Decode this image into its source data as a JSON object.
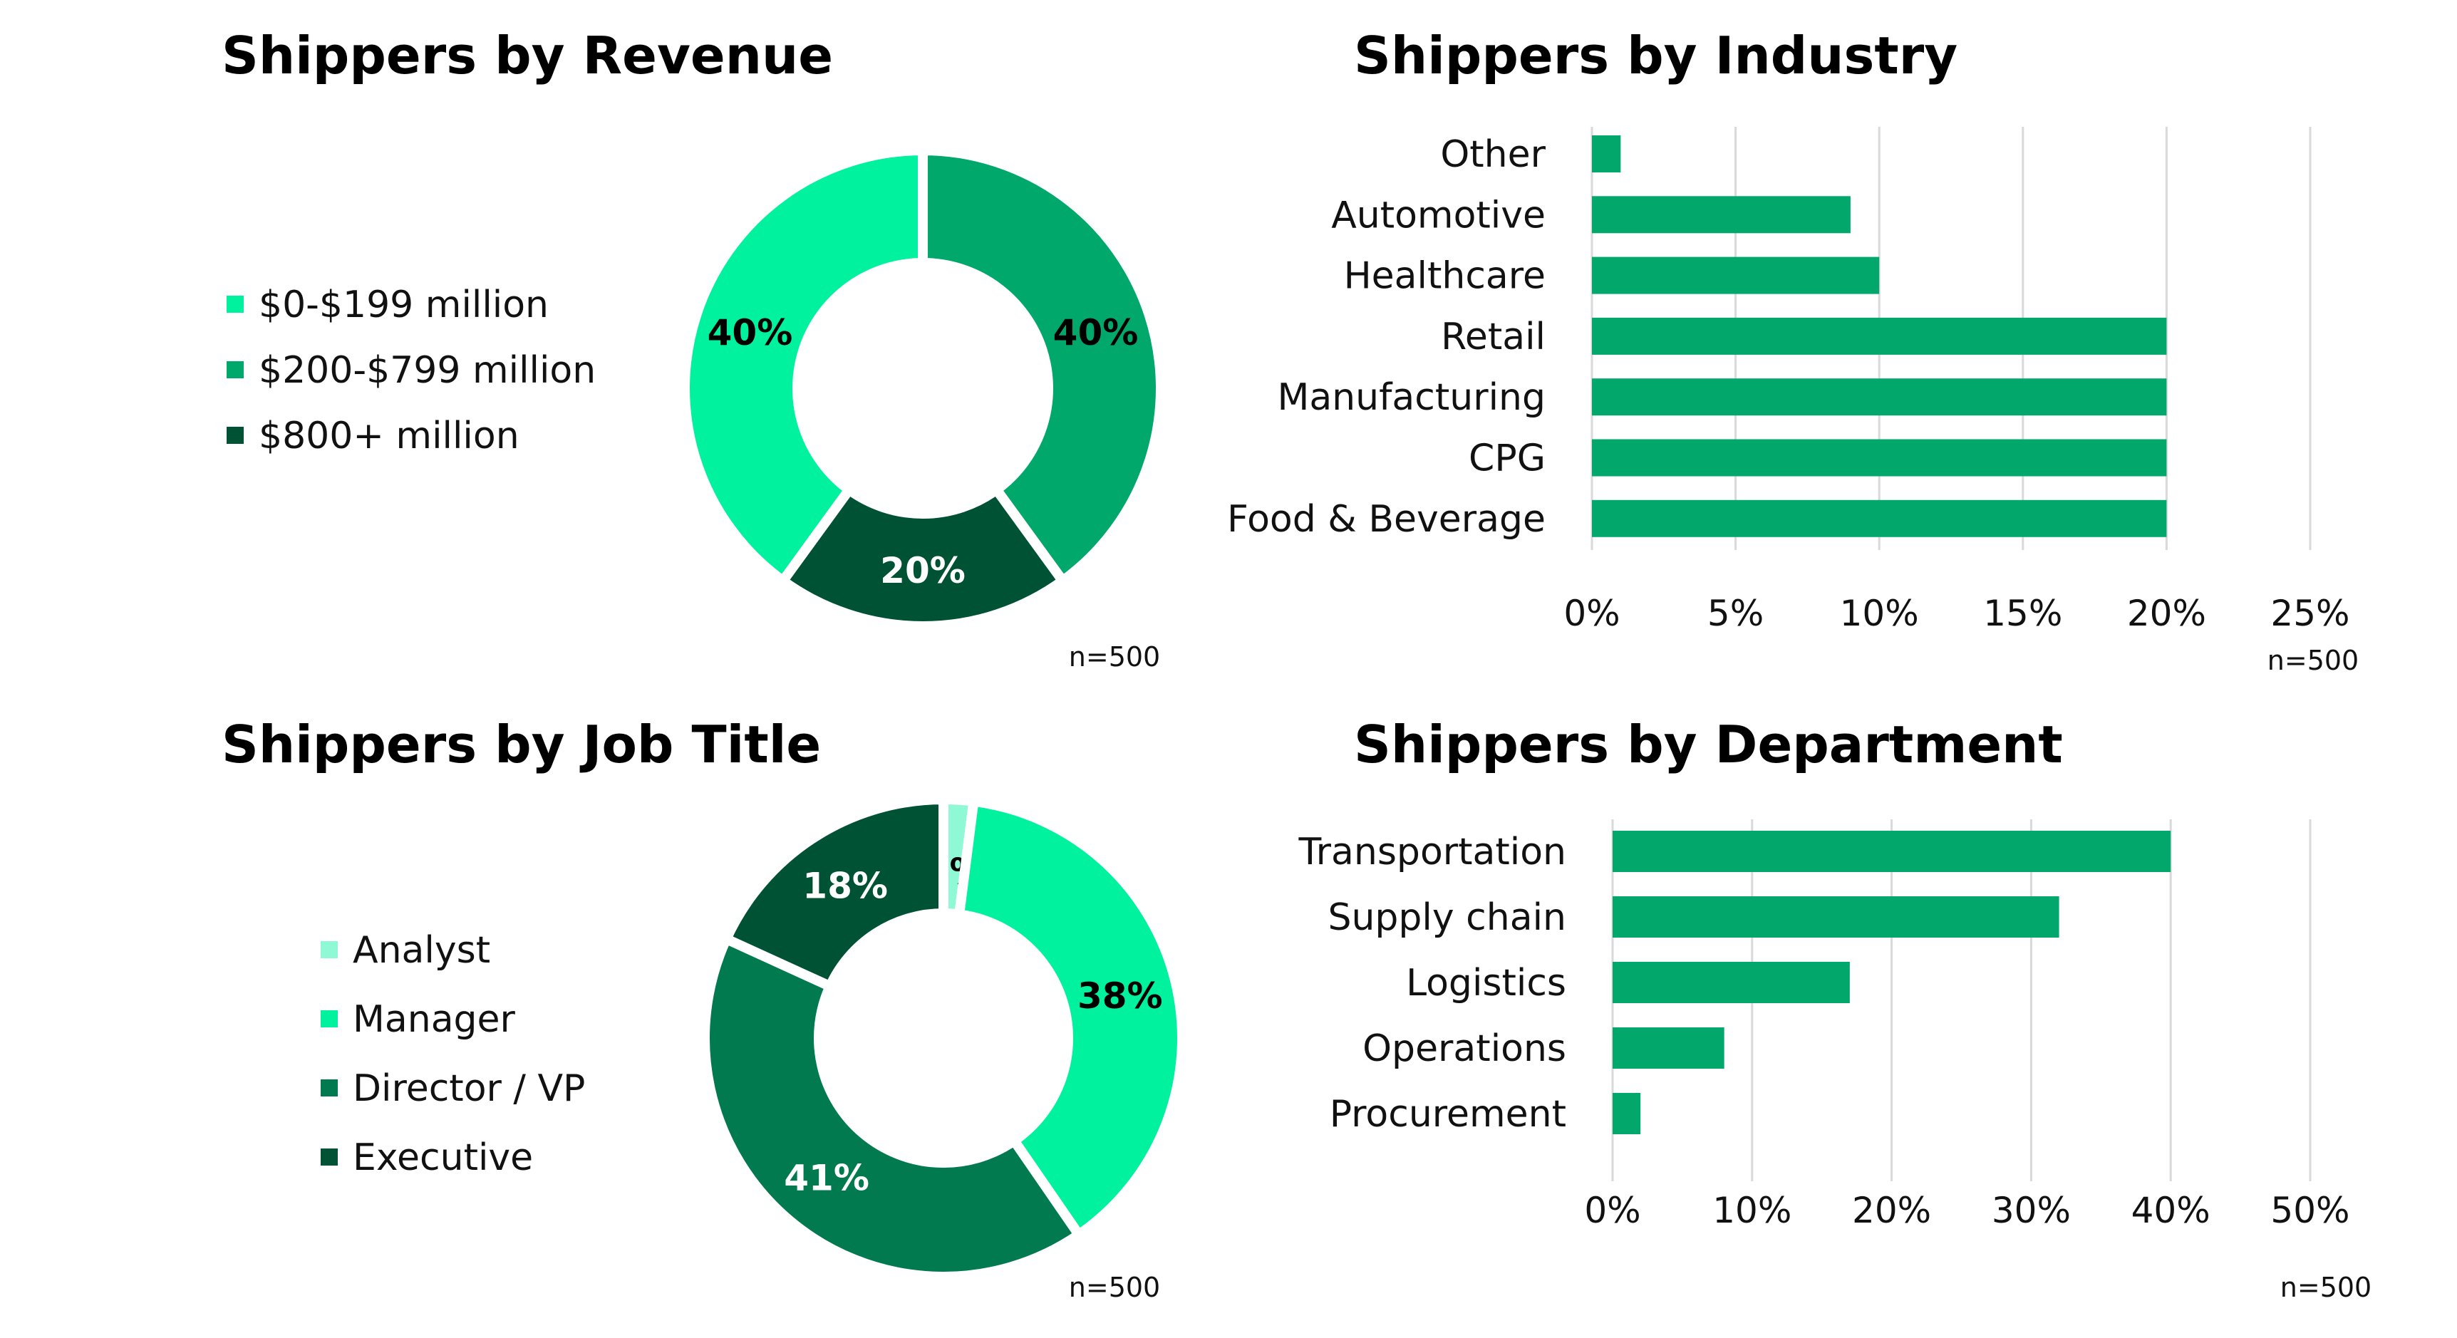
{
  "chart_data": [
    {
      "type": "pie",
      "title": "Shippers by Revenue",
      "categories": [
        "$0-$199 million",
        "$200-$799 million",
        "$800+ million"
      ],
      "values": [
        40,
        40,
        20
      ],
      "labels": [
        "40%",
        "40%",
        "20%"
      ],
      "colors": [
        "#00f29e",
        "#00a86b",
        "#005235"
      ],
      "label_colors": [
        "#000000",
        "#000000",
        "#ffffff"
      ],
      "clockwise_order_from_top": [
        1,
        2,
        0
      ],
      "legend": "left",
      "note": "n=500"
    },
    {
      "type": "bar",
      "orientation": "horizontal",
      "title": "Shippers by Industry",
      "categories": [
        "Other",
        "Automotive",
        "Healthcare",
        "Retail",
        "Manufacturing",
        "CPG",
        "Food & Beverage"
      ],
      "values": [
        1,
        9,
        10,
        20,
        20,
        20,
        20
      ],
      "xlim": [
        0,
        25
      ],
      "xticks": [
        "0%",
        "5%",
        "10%",
        "15%",
        "20%",
        "25%"
      ],
      "grid": true,
      "color": "#02a86b",
      "note": "n=500"
    },
    {
      "type": "pie",
      "title": "Shippers by Job Title",
      "categories": [
        "Analyst",
        "Manager",
        "Director / VP",
        "Executive"
      ],
      "values": [
        2,
        38,
        41,
        18
      ],
      "labels": [
        "2%",
        "38%",
        "41%",
        "18%"
      ],
      "colors": [
        "#8ef9d4",
        "#00f29e",
        "#017a4f",
        "#005235"
      ],
      "label_colors": [
        "#000000",
        "#000000",
        "#ffffff",
        "#ffffff"
      ],
      "clockwise_order_from_top": [
        0,
        1,
        2,
        3
      ],
      "legend": "left",
      "note": "n=500"
    },
    {
      "type": "bar",
      "orientation": "horizontal",
      "title": "Shippers by Department",
      "categories": [
        "Transportation",
        "Supply chain",
        "Logistics",
        "Operations",
        "Procurement"
      ],
      "values": [
        40,
        32,
        17,
        8,
        2
      ],
      "xlim": [
        0,
        50
      ],
      "xticks": [
        "0%",
        "10%",
        "20%",
        "30%",
        "40%",
        "50%"
      ],
      "grid": true,
      "color": "#02a86b",
      "note": "n=500"
    }
  ]
}
